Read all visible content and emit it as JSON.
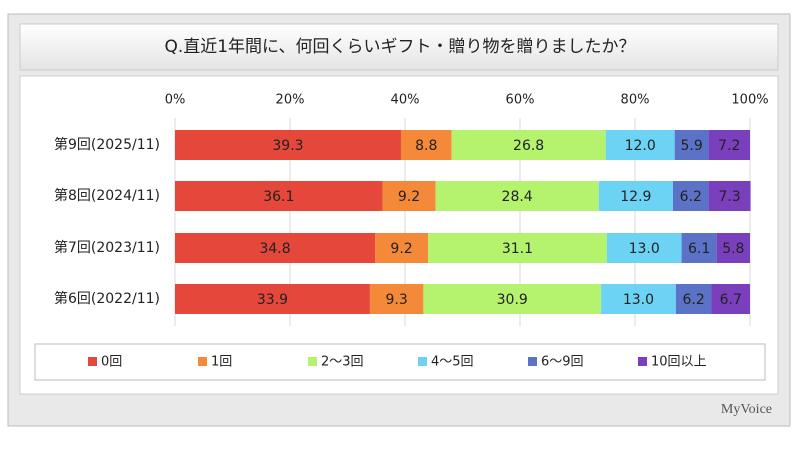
{
  "chart_data": {
    "type": "stacked-bar-horizontal",
    "title": "Q.直近1年間に、何回くらいギフト・贈り物を贈りましたか？",
    "categories": [
      "第9回(2025/11)",
      "第8回(2024/11)",
      "第7回(2023/11)",
      "第6回(2022/11)"
    ],
    "series": [
      {
        "name": "0回",
        "color": "#e5473b",
        "values": [
          39.3,
          36.1,
          34.8,
          33.9
        ],
        "value_labels": [
          "39.3",
          "36.1",
          "34.8",
          "33.9"
        ]
      },
      {
        "name": "1回",
        "color": "#f5893a",
        "values": [
          8.8,
          9.2,
          9.2,
          9.3
        ],
        "value_labels": [
          "8.8",
          "9.2",
          "9.2",
          "9.3"
        ]
      },
      {
        "name": "2～3回",
        "color": "#b5f26e",
        "values": [
          26.8,
          28.4,
          31.1,
          30.9
        ],
        "value_labels": [
          "26.8",
          "28.4",
          "31.1",
          "30.9"
        ]
      },
      {
        "name": "4～5回",
        "color": "#6dd3f4",
        "values": [
          12.0,
          12.9,
          13.0,
          13.0
        ],
        "value_labels": [
          "12.0",
          "12.9",
          "13.0",
          "13.0"
        ]
      },
      {
        "name": "6～9回",
        "color": "#5b72c6",
        "values": [
          5.9,
          6.2,
          6.1,
          6.2
        ],
        "value_labels": [
          "5.9",
          "6.2",
          "6.1",
          "6.2"
        ]
      },
      {
        "name": "10回以上",
        "color": "#7a3fbd",
        "values": [
          7.2,
          7.3,
          5.8,
          6.7
        ],
        "value_labels": [
          "7.2",
          "7.3",
          "5.8",
          "6.7"
        ]
      }
    ],
    "xlim": [
      0,
      100
    ],
    "xticks": [
      {
        "value": 0,
        "label": "0%"
      },
      {
        "value": 20,
        "label": "20%"
      },
      {
        "value": 40,
        "label": "40%"
      },
      {
        "value": 60,
        "label": "60%"
      },
      {
        "value": 80,
        "label": "80%"
      },
      {
        "value": 100,
        "label": "100%"
      }
    ],
    "grid": true,
    "legend": "bottom",
    "source": "MyVoice"
  }
}
